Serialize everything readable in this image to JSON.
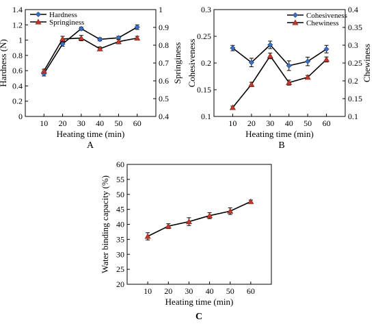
{
  "chart_data": [
    {
      "panel": "A",
      "type": "line",
      "xlabel": "Heating time (min)",
      "x": [
        10,
        20,
        30,
        40,
        50,
        60
      ],
      "ylabel_left": "Hardness (N)",
      "ylabel_right": "Springiness",
      "ylim_left": [
        0,
        1.4
      ],
      "yticks_left": [
        "0",
        "0.2",
        "0.4",
        "0.6",
        "0.8",
        "1",
        "1.2",
        "1.4"
      ],
      "ylim_right": [
        0.4,
        1.0
      ],
      "yticks_right": [
        "0.4",
        "0.5",
        "0.6",
        "0.7",
        "0.8",
        "0.9",
        "1"
      ],
      "legend_position": "top-left",
      "series": [
        {
          "name": "Hardness",
          "axis": "left",
          "color": "#3a6fc4",
          "marker": "diamond",
          "values": [
            0.56,
            0.95,
            1.15,
            1.01,
            1.03,
            1.17
          ],
          "errors": [
            0.03,
            0.03,
            0.02,
            0.02,
            0.02,
            0.03
          ]
        },
        {
          "name": "Springiness",
          "axis": "right",
          "color": "#c0392b",
          "marker": "triangle",
          "values": [
            0.655,
            0.835,
            0.84,
            0.78,
            0.82,
            0.84
          ],
          "errors": [
            0.01,
            0.015,
            0.015,
            0.01,
            0.012,
            0.01
          ]
        }
      ]
    },
    {
      "panel": "B",
      "type": "line",
      "xlabel": "Heating time (min)",
      "x": [
        10,
        20,
        30,
        40,
        50,
        60
      ],
      "ylabel_left": "Cohesiveness",
      "ylabel_right": "Chewiness",
      "ylim_left": [
        0.1,
        0.3
      ],
      "yticks_left": [
        "0.1",
        "0.15",
        "0.2",
        "0.25",
        "0.3"
      ],
      "ylim_right": [
        0.1,
        0.4
      ],
      "yticks_right": [
        "0.1",
        "0.15",
        "0.2",
        "0.25",
        "0.3",
        "0.35",
        "0.4"
      ],
      "legend_position": "top-right",
      "series": [
        {
          "name": "Cohesiveness",
          "axis": "left",
          "color": "#3a6fc4",
          "marker": "diamond",
          "values": [
            0.228,
            0.201,
            0.234,
            0.195,
            0.203,
            0.226
          ],
          "errors": [
            0.005,
            0.008,
            0.007,
            0.009,
            0.008,
            0.007
          ]
        },
        {
          "name": "Chewiness",
          "axis": "right",
          "color": "#c0392b",
          "marker": "triangle",
          "values": [
            0.125,
            0.19,
            0.27,
            0.195,
            0.21,
            0.26
          ],
          "errors": [
            0.004,
            0.006,
            0.008,
            0.007,
            0.005,
            0.007
          ]
        }
      ]
    },
    {
      "panel": "C",
      "type": "line",
      "xlabel": "Heating time (min)",
      "x": [
        10,
        20,
        30,
        40,
        50,
        60
      ],
      "ylabel_left": "Water binding capacity (%)",
      "ylim_left": [
        20,
        60
      ],
      "yticks_left": [
        "20",
        "25",
        "30",
        "35",
        "40",
        "45",
        "50",
        "55",
        "60"
      ],
      "series": [
        {
          "name": "",
          "axis": "left",
          "color": "#c0392b",
          "marker": "triangle",
          "values": [
            36.0,
            39.4,
            40.9,
            42.9,
            44.4,
            47.6
          ],
          "errors": [
            1.2,
            0.8,
            1.3,
            1.0,
            1.1,
            0.5
          ]
        }
      ]
    }
  ]
}
